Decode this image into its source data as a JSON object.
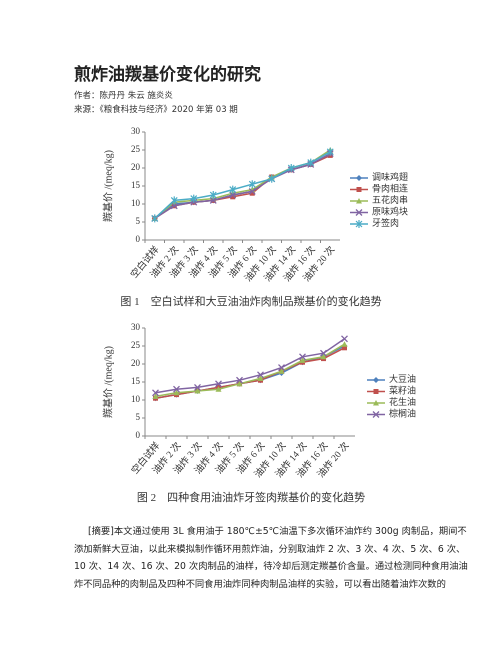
{
  "title": "煎炸油羰基价变化的研究",
  "authors": "作者：陈丹丹 朱云 施炎炎",
  "source": "来源：《粮食科技与经济》2020 年第 03 期",
  "chart_data": [
    {
      "type": "line",
      "ylabel": "羰基价 /(meq/kg)",
      "legend": "right",
      "caption": "图 1　空白试样和大豆油油炸肉制品羰基价的变化趋势",
      "categories": [
        "空白试样",
        "油炸 2 次",
        "油炸 3 次",
        "油炸 4 次",
        "油炸 5 次",
        "油炸 6 次",
        "油炸 10 次",
        "油炸 14 次",
        "油炸 16 次",
        "油炸 20 次"
      ],
      "ylim": [
        0,
        30
      ],
      "yticks": [
        0,
        5,
        10,
        15,
        20,
        25,
        30
      ],
      "series": [
        {
          "name": "调味鸡翅",
          "color": "#4f81bd",
          "marker": "diamond",
          "values": [
            6,
            10,
            10.5,
            11,
            12.5,
            13.5,
            17.5,
            19.5,
            21,
            24
          ]
        },
        {
          "name": "骨肉相连",
          "color": "#c0504d",
          "marker": "square",
          "values": [
            6,
            9.5,
            10.5,
            11,
            12,
            13,
            17.5,
            19.5,
            21,
            23.5
          ]
        },
        {
          "name": "五花肉串",
          "color": "#9bbb59",
          "marker": "triangle",
          "values": [
            6,
            10.5,
            11,
            11.5,
            13,
            14,
            17.5,
            20,
            21.5,
            25
          ]
        },
        {
          "name": "原味鸡块",
          "color": "#8064a2",
          "marker": "x",
          "values": [
            6,
            9.5,
            10.5,
            11,
            12.5,
            13.5,
            17,
            19.5,
            21,
            24
          ]
        },
        {
          "name": "牙签肉",
          "color": "#4bacc6",
          "marker": "star",
          "values": [
            6,
            11,
            11.5,
            12.5,
            14,
            15.5,
            17,
            20,
            21.5,
            24.5
          ]
        }
      ]
    },
    {
      "type": "line",
      "ylabel": "羰基价 /(meq/kg)",
      "legend": "right",
      "caption": "图 2　四种食用油油炸牙签肉羰基价的变化趋势",
      "categories": [
        "空白试样",
        "油炸 2 次",
        "油炸 3 次",
        "油炸 4 次",
        "油炸 5 次",
        "油炸 6 次",
        "油炸 10 次",
        "油炸 14 次",
        "油炸 16 次",
        "油炸 20 次"
      ],
      "ylim": [
        0,
        30
      ],
      "yticks": [
        0,
        5,
        10,
        15,
        20,
        25,
        30
      ],
      "series": [
        {
          "name": "大豆油",
          "color": "#4f81bd",
          "marker": "diamond",
          "values": [
            10.5,
            11.5,
            12.5,
            13.5,
            14.5,
            15.5,
            17.5,
            20.5,
            22,
            25
          ]
        },
        {
          "name": "菜籽油",
          "color": "#c0504d",
          "marker": "square",
          "values": [
            10.5,
            11.5,
            12.5,
            13.5,
            14.5,
            15.5,
            18,
            20.5,
            21.5,
            24.5
          ]
        },
        {
          "name": "花生油",
          "color": "#9bbb59",
          "marker": "triangle",
          "values": [
            11,
            12,
            12.5,
            13,
            14.5,
            16,
            18,
            21,
            22,
            25.5
          ]
        },
        {
          "name": "棕榈油",
          "color": "#8064a2",
          "marker": "x",
          "values": [
            12,
            13,
            13.5,
            14.5,
            15.5,
            17,
            19,
            22,
            23,
            27
          ]
        }
      ]
    }
  ],
  "abstract": "[摘要]本文通过使用 3L 食用油于 180℃±5℃油温下多次循环油炸约 300g 肉制品，期间不添加新鲜大豆油，以此来模拟制作循环用煎炸油，分别取油炸 2 次、3 次、4 次、5 次、6 次、10 次、14 次、16 次、20 次肉制品的油样，待冷却后测定羰基价含量。通过检测同种食用油油炸不同品种的肉制品及四种不同食用油炸同种肉制品油样的实验，可以看出随着油炸次数的"
}
